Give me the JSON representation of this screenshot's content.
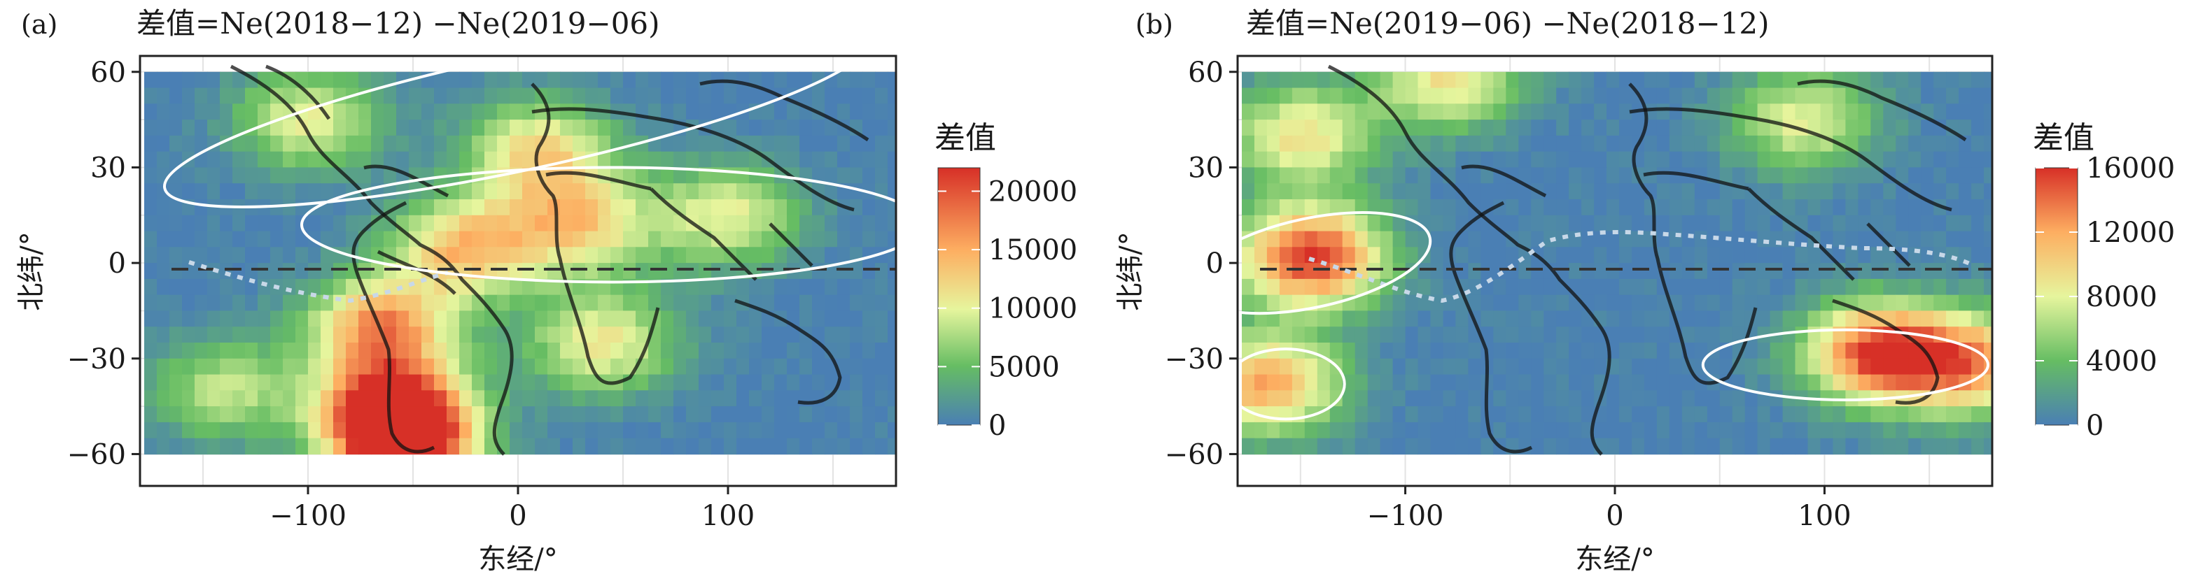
{
  "panels": [
    {
      "letter": "(a)",
      "title": "差值=Ne(2018−12) −Ne(2019−06)",
      "xlabel": "东经/°",
      "ylabel": "北纬/°",
      "xticks": [
        "−100",
        "0",
        "100"
      ],
      "yticks": [
        "60",
        "30",
        "0",
        "−30",
        "−60"
      ],
      "legend_title": "差值",
      "legend_ticks": [
        "20000",
        "15000",
        "10000",
        "5000",
        "0"
      ]
    },
    {
      "letter": "(b)",
      "title": "差值=Ne(2019−06) −Ne(2018−12)",
      "xlabel": "东经/°",
      "ylabel": "北纬/°",
      "xticks": [
        "−100",
        "0",
        "100"
      ],
      "yticks": [
        "60",
        "30",
        "0",
        "−30",
        "−60"
      ],
      "legend_title": "差值",
      "legend_ticks": [
        "16000",
        "12000",
        "8000",
        "4000",
        "0"
      ]
    }
  ],
  "chart_data": [
    {
      "type": "heatmap",
      "title": "差值=Ne(2018−12) −Ne(2019−06)",
      "xlabel": "东经/°",
      "ylabel": "北纬/°",
      "xlim": [
        -180,
        180
      ],
      "ylim": [
        -70,
        65
      ],
      "data_extent": {
        "lon": [
          -178,
          178
        ],
        "lat": [
          -58,
          60
        ]
      },
      "colorbar": {
        "title": "差值",
        "range": [
          0,
          22000
        ],
        "ticks": [
          0,
          5000,
          10000,
          15000,
          20000
        ]
      },
      "grid": true,
      "hotspots": [
        {
          "lon": -55,
          "lat": -56,
          "value": 22000
        },
        {
          "lon": -60,
          "lat": -45,
          "value": 18000
        },
        {
          "lon": -65,
          "lat": -20,
          "value": 17000
        },
        {
          "lon": -25,
          "lat": 5,
          "value": 15000
        },
        {
          "lon": 30,
          "lat": 12,
          "value": 13000
        },
        {
          "lon": 10,
          "lat": 35,
          "value": 13000
        },
        {
          "lon": -100,
          "lat": 45,
          "value": 11000
        },
        {
          "lon": 40,
          "lat": -25,
          "value": 12000
        },
        {
          "lon": 100,
          "lat": 15,
          "value": 11000
        },
        {
          "lon": -140,
          "lat": -40,
          "value": 9000
        }
      ],
      "ellipses": [
        {
          "center": [
            0,
            47
          ],
          "angle_deg": 12
        },
        {
          "center": [
            45,
            12
          ],
          "angle_deg": 0
        }
      ]
    },
    {
      "type": "heatmap",
      "title": "差值=Ne(2019−06) −Ne(2018−12)",
      "xlabel": "东经/°",
      "ylabel": "北纬/°",
      "xlim": [
        -180,
        180
      ],
      "ylim": [
        -70,
        65
      ],
      "data_extent": {
        "lon": [
          -178,
          178
        ],
        "lat": [
          -58,
          60
        ]
      },
      "colorbar": {
        "title": "差值",
        "range": [
          0,
          16000
        ],
        "ticks": [
          0,
          4000,
          8000,
          12000,
          16000
        ]
      },
      "grid": true,
      "hotspots": [
        {
          "lon": -145,
          "lat": 2,
          "value": 16000
        },
        {
          "lon": -165,
          "lat": -38,
          "value": 12000
        },
        {
          "lon": 125,
          "lat": -28,
          "value": 15000
        },
        {
          "lon": 170,
          "lat": -32,
          "value": 12000
        },
        {
          "lon": -150,
          "lat": 40,
          "value": 9000
        },
        {
          "lon": -80,
          "lat": 58,
          "value": 9000
        },
        {
          "lon": 90,
          "lat": 45,
          "value": 8000
        }
      ],
      "ellipses": [
        {
          "center": [
            -145,
            0
          ],
          "angle_deg": 12
        },
        {
          "center": [
            -157,
            -38
          ],
          "angle_deg": 0
        },
        {
          "center": [
            110,
            -32
          ],
          "angle_deg": 0
        }
      ]
    }
  ]
}
